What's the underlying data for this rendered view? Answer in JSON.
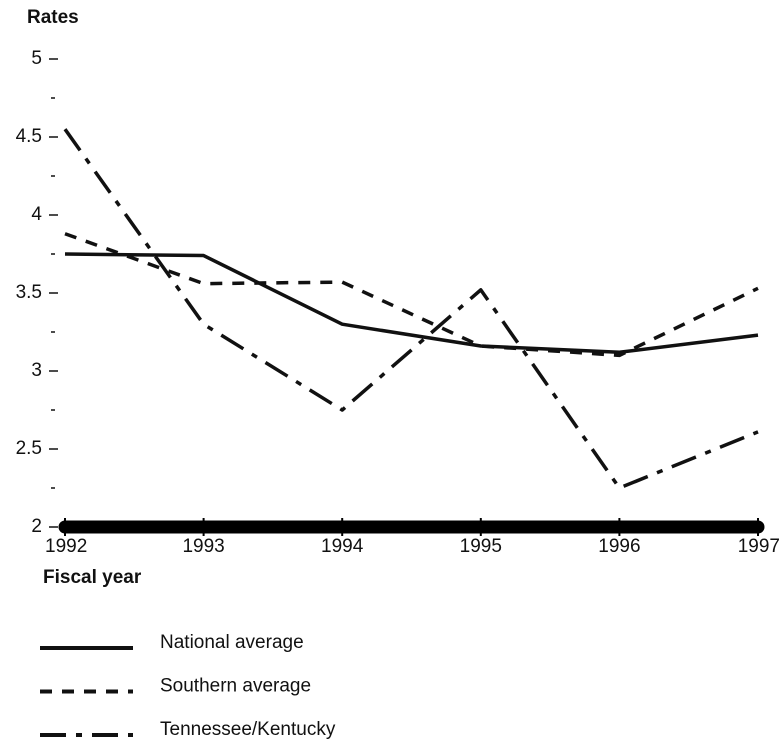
{
  "chart_data": {
    "type": "line",
    "y_label": "Rates",
    "x_label": "Fiscal year",
    "x": [
      1992,
      1993,
      1994,
      1995,
      1996,
      1997
    ],
    "xlim": [
      1992,
      1997
    ],
    "xticks": [
      1992,
      1993,
      1994,
      1995,
      1996,
      1997
    ],
    "ylim": [
      2,
      5
    ],
    "yticks": [
      2,
      2.5,
      3,
      3.5,
      4,
      4.5,
      5
    ],
    "yminorticks": [
      2.25,
      2.75,
      3.25,
      3.75,
      4.25,
      4.75
    ],
    "series": [
      {
        "name": "National average",
        "color": "#111111",
        "dash": "solid",
        "values": [
          3.75,
          3.74,
          3.3,
          3.16,
          3.12,
          3.23
        ]
      },
      {
        "name": "Southern average",
        "color": "#111111",
        "dash": "dashed",
        "values": [
          3.88,
          3.56,
          3.57,
          3.16,
          3.1,
          3.53
        ]
      },
      {
        "name": "Tennessee/Kentucky",
        "color": "#111111",
        "dash": "dashdot",
        "values": [
          4.55,
          3.3,
          2.75,
          3.52,
          2.25,
          2.61
        ]
      }
    ]
  }
}
